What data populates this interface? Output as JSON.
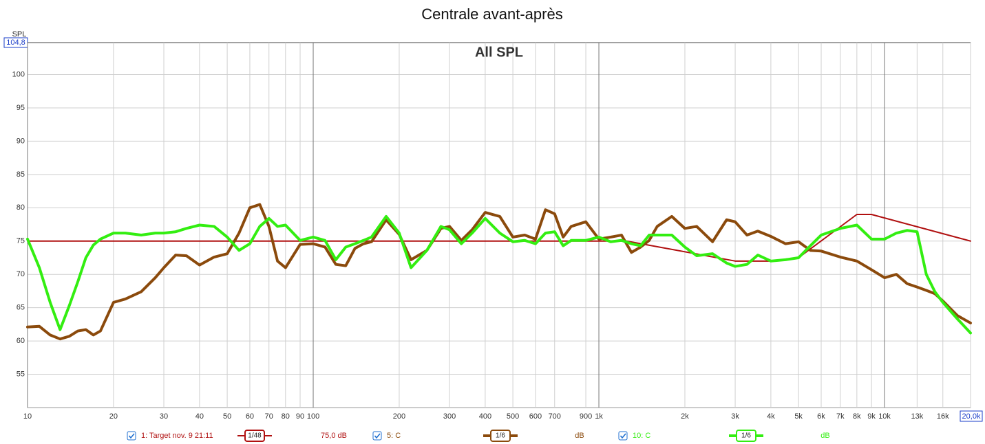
{
  "chart_data": {
    "type": "line",
    "title": "Centrale avant-après",
    "subtitle": "All SPL",
    "y_label": "SPL",
    "log_x": true,
    "grid": true,
    "xlim": [
      10,
      20000
    ],
    "ylim": [
      50,
      104.8
    ],
    "yticks": [
      55,
      60,
      65,
      70,
      75,
      80,
      85,
      90,
      95,
      100,
      {
        "value": 104.8,
        "label": "104,8"
      }
    ],
    "xticks": [
      10,
      20,
      30,
      40,
      50,
      60,
      70,
      80,
      90,
      100,
      200,
      300,
      400,
      500,
      600,
      700,
      900,
      {
        "value": 1000,
        "label": "1k"
      },
      {
        "value": 2000,
        "label": "2k"
      },
      {
        "value": 3000,
        "label": "3k"
      },
      {
        "value": 4000,
        "label": "4k"
      },
      {
        "value": 5000,
        "label": "5k"
      },
      {
        "value": 6000,
        "label": "6k"
      },
      {
        "value": 7000,
        "label": "7k"
      },
      {
        "value": 8000,
        "label": "8k"
      },
      {
        "value": 9000,
        "label": "9k"
      },
      {
        "value": 10000,
        "label": "10k"
      },
      {
        "value": 13000,
        "label": "13k"
      },
      {
        "value": 16000,
        "label": "16k"
      },
      {
        "value": 20000,
        "label": "20,0k"
      }
    ],
    "series": [
      {
        "name": "1: Target nov. 9 21:11",
        "color": "#b01010",
        "width": 2,
        "smoothing": "1/48",
        "level": "75,0 dB",
        "x": [
          10,
          1250,
          3000,
          4000,
          5000,
          8000,
          9000,
          20000
        ],
        "values": [
          75,
          75,
          72,
          72,
          72.5,
          79,
          79,
          75
        ]
      },
      {
        "name": "5: C",
        "color": "#8b4a0c",
        "width": 4,
        "smoothing": "1/6",
        "level": "dB",
        "x": [
          10,
          11,
          12,
          13,
          14,
          15,
          16,
          17,
          18,
          20,
          22,
          25,
          28,
          30,
          33,
          36,
          40,
          45,
          50,
          55,
          60,
          65,
          70,
          75,
          80,
          90,
          100,
          110,
          120,
          130,
          140,
          150,
          160,
          180,
          200,
          220,
          250,
          280,
          300,
          330,
          360,
          400,
          450,
          500,
          550,
          600,
          650,
          700,
          750,
          800,
          900,
          1000,
          1100,
          1200,
          1300,
          1400,
          1500,
          1600,
          1800,
          2000,
          2200,
          2500,
          2800,
          3000,
          3300,
          3600,
          4000,
          4500,
          5000,
          5500,
          6000,
          7000,
          8000,
          9000,
          10000,
          11000,
          12000,
          13000,
          14000,
          15000,
          16000,
          18000,
          20000
        ],
        "values": [
          62.1,
          62.2,
          60.9,
          60.3,
          60.7,
          61.5,
          61.7,
          60.9,
          61.5,
          65.8,
          66.3,
          67.4,
          69.5,
          71.0,
          72.9,
          72.8,
          71.4,
          72.6,
          73.1,
          76.2,
          80.0,
          80.5,
          77.2,
          72.0,
          71.0,
          74.5,
          74.6,
          74.1,
          71.5,
          71.3,
          73.9,
          74.6,
          74.9,
          78.2,
          76.0,
          72.2,
          73.6,
          76.9,
          77.2,
          75.1,
          76.7,
          79.3,
          78.7,
          75.6,
          75.9,
          75.3,
          79.7,
          79.1,
          75.6,
          77.2,
          77.9,
          75.3,
          75.6,
          75.9,
          73.3,
          74.1,
          75.1,
          77.2,
          78.7,
          76.9,
          77.2,
          74.9,
          78.2,
          77.9,
          75.9,
          76.5,
          75.7,
          74.6,
          74.9,
          73.6,
          73.5,
          72.6,
          72.0,
          70.7,
          69.5,
          70.0,
          68.6,
          68.1,
          67.6,
          67.1,
          66.0,
          63.8,
          62.7
        ]
      },
      {
        "name": "10: C",
        "color": "#33ee11",
        "width": 4,
        "smoothing": "1/6",
        "level": "dB",
        "x": [
          10,
          11,
          12,
          13,
          14,
          15,
          16,
          17,
          18,
          20,
          22,
          25,
          28,
          30,
          33,
          36,
          40,
          45,
          50,
          55,
          60,
          65,
          70,
          75,
          80,
          90,
          100,
          110,
          120,
          130,
          140,
          150,
          160,
          180,
          200,
          220,
          250,
          280,
          300,
          330,
          360,
          400,
          450,
          500,
          550,
          600,
          650,
          700,
          750,
          800,
          900,
          1000,
          1100,
          1200,
          1300,
          1400,
          1500,
          1600,
          1800,
          2000,
          2200,
          2500,
          2800,
          3000,
          3300,
          3600,
          4000,
          4500,
          5000,
          5500,
          6000,
          7000,
          8000,
          9000,
          10000,
          11000,
          12000,
          13000,
          14000,
          15000,
          16000,
          18000,
          20000
        ],
        "values": [
          75.3,
          71.0,
          65.8,
          61.7,
          65.3,
          68.9,
          72.5,
          74.4,
          75.3,
          76.2,
          76.2,
          75.9,
          76.2,
          76.2,
          76.4,
          76.9,
          77.4,
          77.2,
          75.6,
          73.6,
          74.6,
          77.2,
          78.4,
          77.2,
          77.4,
          75.1,
          75.6,
          75.1,
          72.2,
          74.1,
          74.6,
          75.1,
          75.6,
          78.7,
          76.2,
          71.0,
          73.6,
          77.2,
          76.7,
          74.6,
          76.2,
          78.4,
          76.2,
          74.9,
          75.1,
          74.6,
          76.2,
          76.4,
          74.3,
          75.1,
          75.1,
          75.6,
          74.9,
          75.1,
          74.6,
          74.3,
          75.9,
          75.9,
          75.9,
          74.1,
          72.8,
          73.1,
          71.7,
          71.2,
          71.5,
          72.9,
          72.0,
          72.2,
          72.5,
          74.3,
          75.9,
          76.9,
          77.4,
          75.3,
          75.3,
          76.2,
          76.6,
          76.4,
          70.0,
          67.4,
          65.8,
          63.3,
          61.2
        ]
      }
    ]
  }
}
